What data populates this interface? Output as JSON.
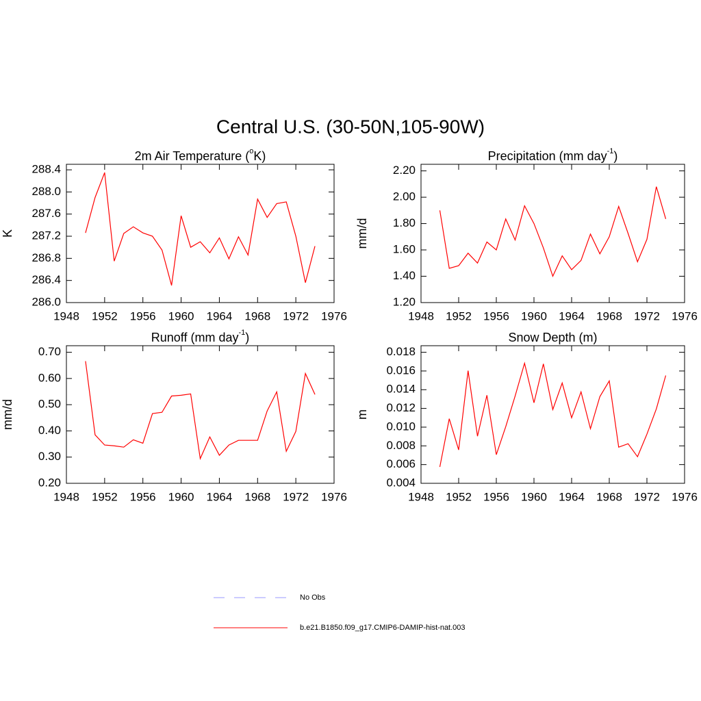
{
  "title": "Central U.S. (30-50N,105-90W)",
  "legend": [
    {
      "name": "No Obs",
      "color": "#9999ff",
      "dash": true
    },
    {
      "name": "b.e21.B1850.f09_g17.CMIP6-DAMIP-hist-nat.003",
      "color": "#ff0000",
      "dash": false
    }
  ],
  "chart_data": [
    {
      "type": "line",
      "title": [
        "2m Air Temperature (",
        "o",
        "K)"
      ],
      "ylabel": "K",
      "color": "#ff0000",
      "x": [
        1950,
        1951,
        1952,
        1953,
        1954,
        1955,
        1956,
        1957,
        1958,
        1959,
        1960,
        1961,
        1962,
        1963,
        1964,
        1965,
        1966,
        1967,
        1968,
        1969,
        1970,
        1971,
        1972,
        1973,
        1974
      ],
      "values": [
        287.26,
        287.9,
        288.35,
        286.75,
        287.25,
        287.37,
        287.26,
        287.2,
        286.95,
        286.31,
        287.57,
        287.0,
        287.1,
        286.9,
        287.17,
        286.79,
        287.19,
        286.86,
        287.87,
        287.54,
        287.79,
        287.82,
        287.2,
        286.36,
        287.02
      ],
      "xlim": [
        1948,
        1976
      ],
      "xticks": [
        1948,
        1952,
        1956,
        1960,
        1964,
        1968,
        1972,
        1976
      ],
      "ylim": [
        286.0,
        288.5
      ],
      "yticks": [
        {
          "value": 286.0,
          "label": "286.0"
        },
        286.4,
        286.8,
        287.2,
        287.6,
        {
          "value": 288.0,
          "label": "288.0"
        },
        288.4
      ]
    },
    {
      "type": "line",
      "title": [
        "Precipitation (mm day",
        "-1",
        ")"
      ],
      "ylabel": "mm/d",
      "color": "#ff0000",
      "x": [
        1950,
        1951,
        1952,
        1953,
        1954,
        1955,
        1956,
        1957,
        1958,
        1959,
        1960,
        1961,
        1962,
        1963,
        1964,
        1965,
        1966,
        1967,
        1968,
        1969,
        1970,
        1971,
        1972,
        1973,
        1974
      ],
      "values": [
        1.9,
        1.46,
        1.48,
        1.575,
        1.5,
        1.66,
        1.6,
        1.835,
        1.675,
        1.935,
        1.8,
        1.615,
        1.4,
        1.555,
        1.45,
        1.52,
        1.72,
        1.57,
        1.7,
        1.93,
        1.725,
        1.51,
        1.68,
        2.08,
        1.835
      ],
      "xlim": [
        1948,
        1976
      ],
      "xticks": [
        1948,
        1952,
        1956,
        1960,
        1964,
        1968,
        1972,
        1976
      ],
      "ylim": [
        1.2,
        2.25
      ],
      "yticks": [
        {
          "value": 1.2,
          "label": "1.20"
        },
        {
          "value": 1.4,
          "label": "1.40"
        },
        {
          "value": 1.6,
          "label": "1.60"
        },
        {
          "value": 1.8,
          "label": "1.80"
        },
        {
          "value": 2.0,
          "label": "2.00"
        },
        {
          "value": 2.2,
          "label": "2.20"
        }
      ]
    },
    {
      "type": "line",
      "title": [
        "Runoff (mm day",
        "-1",
        ")"
      ],
      "ylabel": "mm/d",
      "color": "#ff0000",
      "x": [
        1950,
        1951,
        1952,
        1953,
        1954,
        1955,
        1956,
        1957,
        1958,
        1959,
        1960,
        1961,
        1962,
        1963,
        1964,
        1965,
        1966,
        1967,
        1968,
        1969,
        1970,
        1971,
        1972,
        1973,
        1974
      ],
      "values": [
        0.666,
        0.385,
        0.346,
        0.343,
        0.338,
        0.366,
        0.353,
        0.466,
        0.471,
        0.533,
        0.536,
        0.541,
        0.294,
        0.377,
        0.307,
        0.346,
        0.364,
        0.364,
        0.364,
        0.476,
        0.549,
        0.322,
        0.398,
        0.619,
        0.539
      ],
      "xlim": [
        1948,
        1976
      ],
      "xticks": [
        1948,
        1952,
        1956,
        1960,
        1964,
        1968,
        1972,
        1976
      ],
      "ylim": [
        0.2,
        0.725
      ],
      "yticks": [
        {
          "value": 0.2,
          "label": "0.20"
        },
        {
          "value": 0.3,
          "label": "0.30"
        },
        {
          "value": 0.4,
          "label": "0.40"
        },
        {
          "value": 0.5,
          "label": "0.50"
        },
        {
          "value": 0.6,
          "label": "0.60"
        },
        {
          "value": 0.7,
          "label": "0.70"
        }
      ]
    },
    {
      "type": "line",
      "title": "Snow Depth (m)",
      "ylabel": "m",
      "color": "#ff0000",
      "x": [
        1950,
        1951,
        1952,
        1953,
        1954,
        1955,
        1956,
        1957,
        1958,
        1959,
        1960,
        1961,
        1962,
        1963,
        1964,
        1965,
        1966,
        1967,
        1968,
        1969,
        1970,
        1971,
        1972,
        1973,
        1974
      ],
      "values": [
        0.00575,
        0.0109,
        0.00757,
        0.01603,
        0.00903,
        0.01341,
        0.00706,
        0.01005,
        0.01333,
        0.01683,
        0.0126,
        0.01676,
        0.01188,
        0.01472,
        0.011,
        0.01377,
        0.00983,
        0.01326,
        0.01494,
        0.00786,
        0.00823,
        0.00684,
        0.00925,
        0.01195,
        0.01552
      ],
      "xlim": [
        1948,
        1976
      ],
      "xticks": [
        1948,
        1952,
        1956,
        1960,
        1964,
        1968,
        1972,
        1976
      ],
      "ylim": [
        0.004,
        0.0187
      ],
      "yticks": [
        0.004,
        0.006,
        0.008,
        {
          "value": 0.01,
          "label": "0.010"
        },
        0.012,
        0.014,
        0.016,
        0.018
      ]
    }
  ]
}
